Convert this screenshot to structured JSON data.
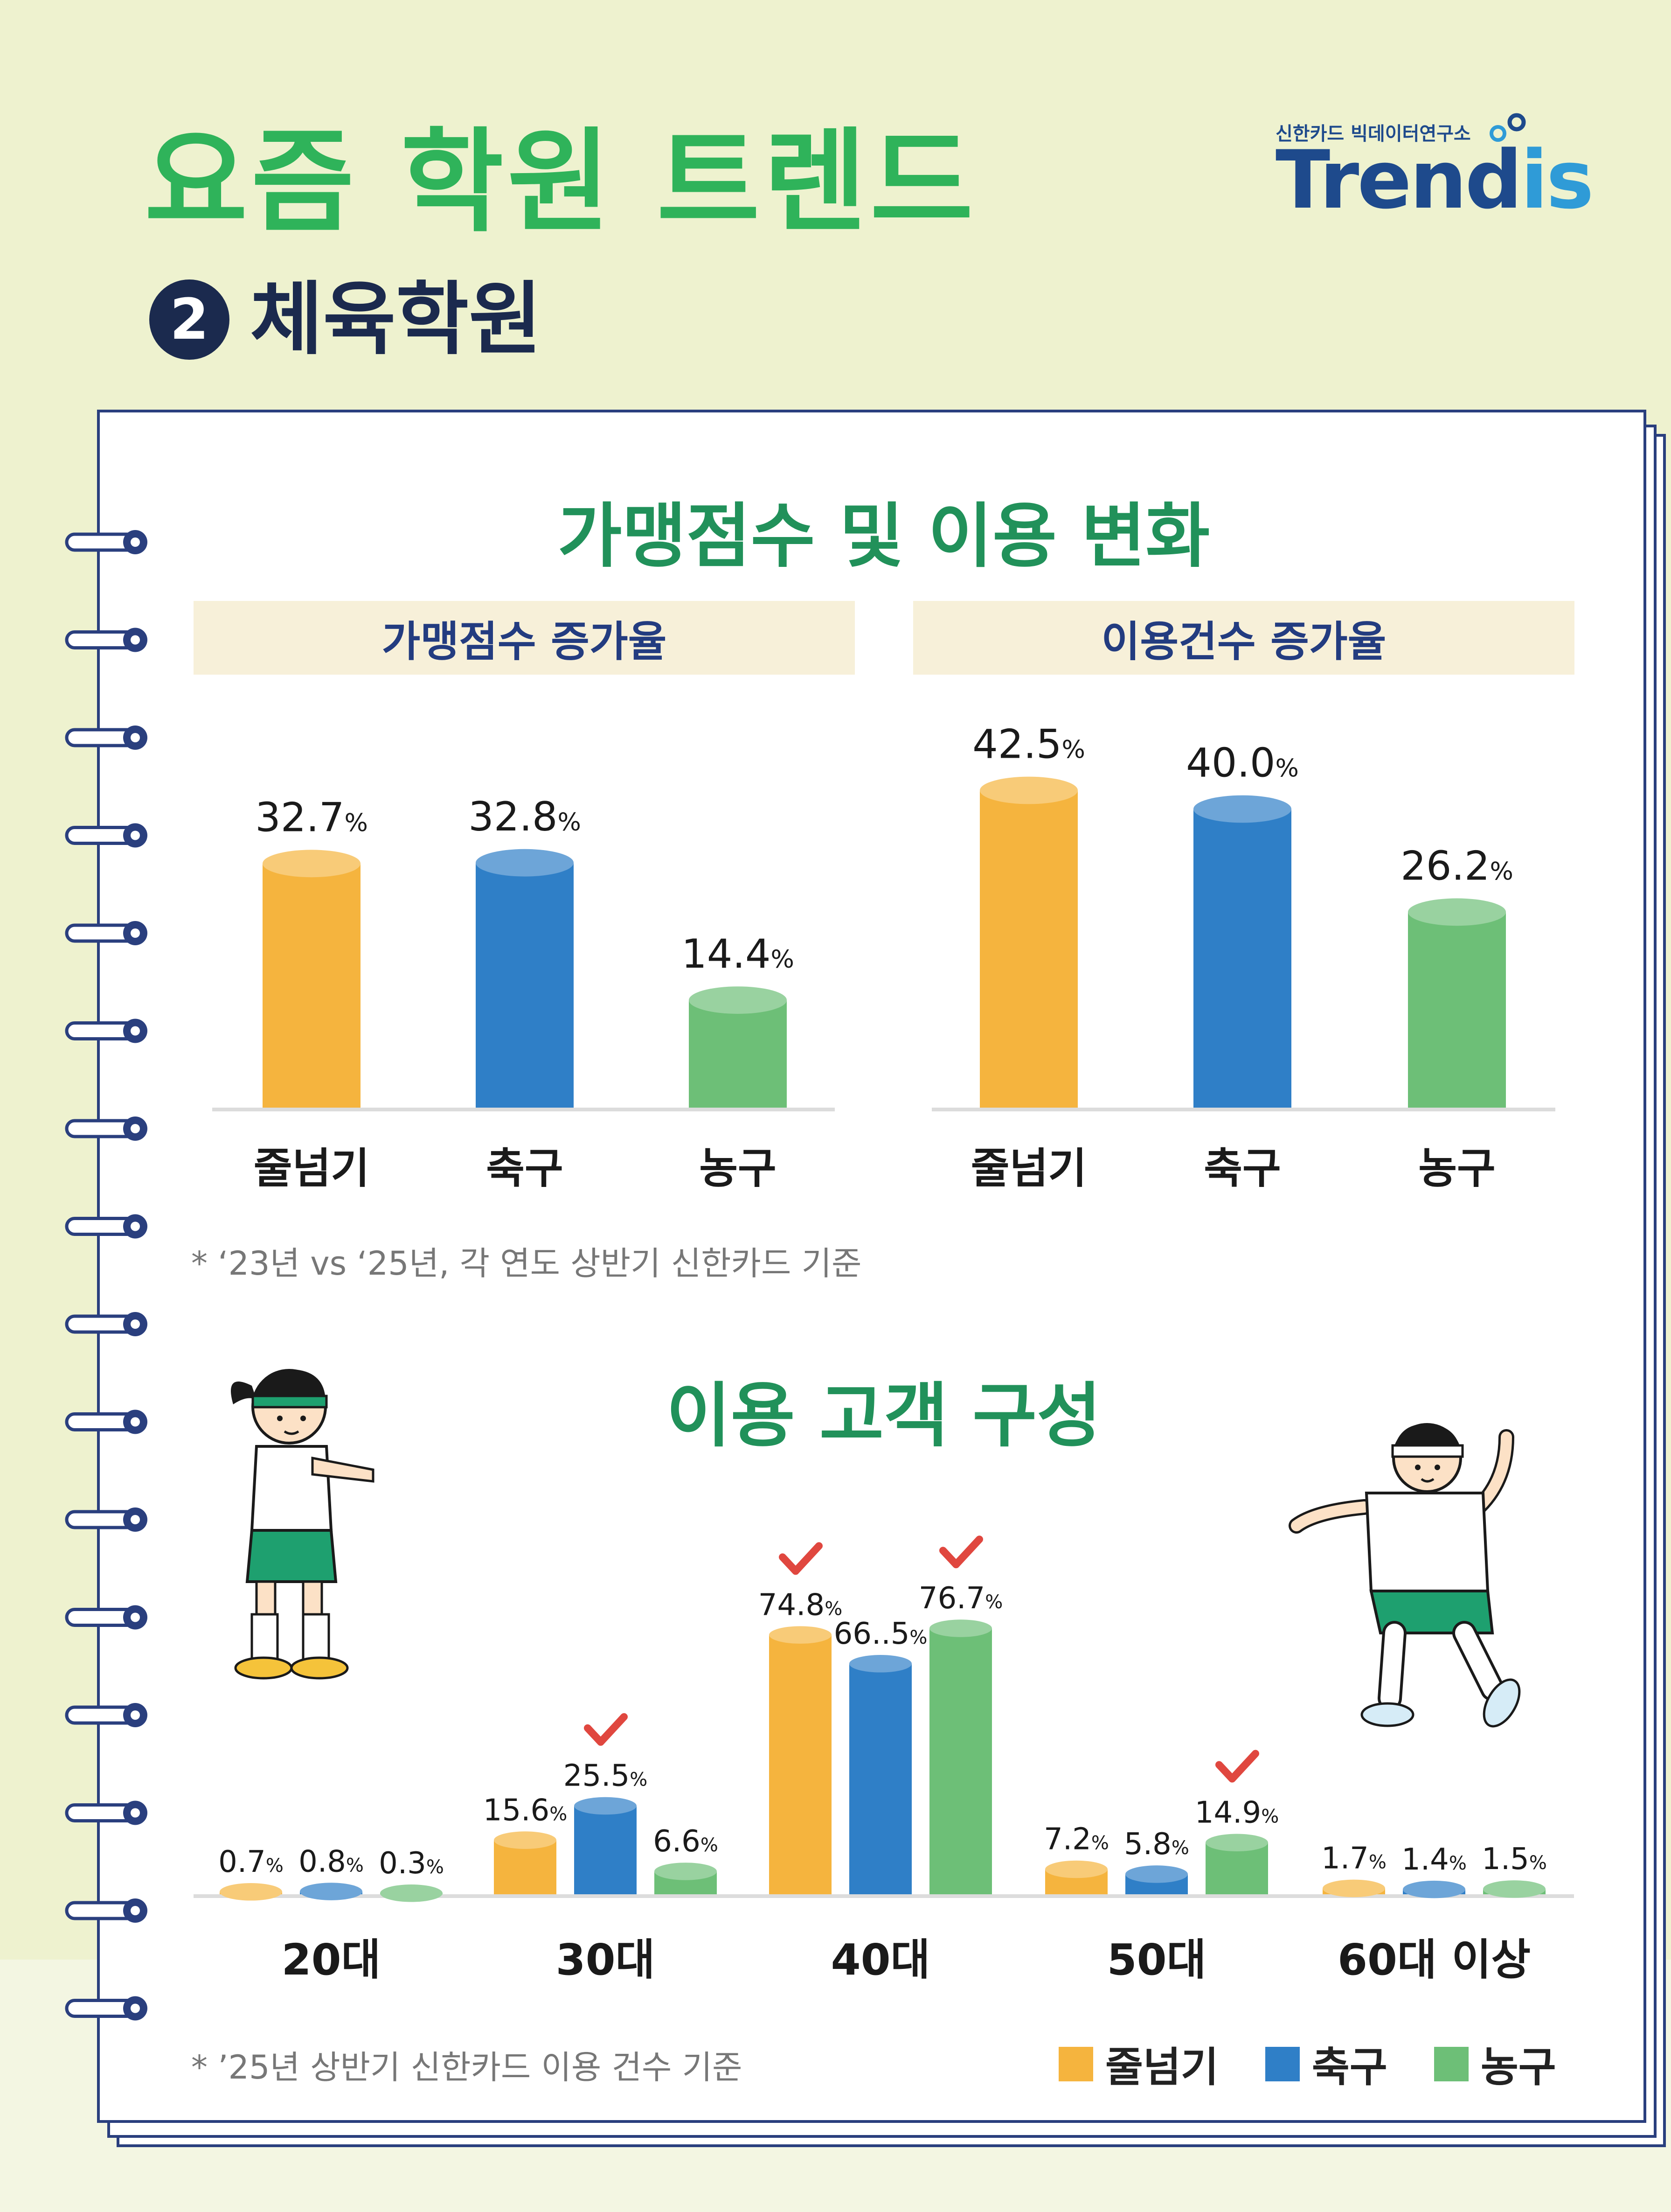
{
  "header": {
    "title": "요즘 학원 트렌드",
    "subtitle_number": "2",
    "subtitle": "체육학원"
  },
  "logo": {
    "org": "신한카드 빅데이터연구소",
    "brand_main": "Trend",
    "brand_accent": "is"
  },
  "section1": {
    "title": "가맹점수 및 이용 변화",
    "note": "* ‘23년 vs ‘25년, 각 연도 상반기 신한카드 기준"
  },
  "section2": {
    "title": "이용 고객 구성",
    "note": "* ’25년 상반기 신한카드 이용 건수 기준"
  },
  "legend": [
    {
      "label": "줄넘기",
      "color": "#f5b43e"
    },
    {
      "label": "축구",
      "color": "#2f7fc7"
    },
    {
      "label": "농구",
      "color": "#6dbf77"
    }
  ],
  "chart_data": [
    {
      "type": "bar",
      "title": "가맹점수 증가율",
      "categories": [
        "줄넘기",
        "축구",
        "농구"
      ],
      "values": [
        32.7,
        32.8,
        14.4
      ],
      "value_labels": [
        "32.7",
        "32.8",
        "14.4"
      ],
      "unit": "%",
      "colors": [
        "#f5b43e",
        "#2f7fc7",
        "#6dbf77"
      ]
    },
    {
      "type": "bar",
      "title": "이용건수 증가율",
      "categories": [
        "줄넘기",
        "축구",
        "농구"
      ],
      "values": [
        42.5,
        40.0,
        26.2
      ],
      "value_labels": [
        "42.5",
        "40.0",
        "26.2"
      ],
      "unit": "%",
      "colors": [
        "#f5b43e",
        "#2f7fc7",
        "#6dbf77"
      ]
    },
    {
      "type": "bar",
      "title": "이용 고객 구성",
      "categories": [
        "20대",
        "30대",
        "40대",
        "50대",
        "60대 이상"
      ],
      "unit": "%",
      "series": [
        {
          "name": "줄넘기",
          "color": "#f5b43e",
          "values": [
            0.7,
            15.6,
            74.8,
            7.2,
            1.7
          ],
          "value_labels": [
            "0.7",
            "15.6",
            "74.8",
            "7.2",
            "1.7"
          ]
        },
        {
          "name": "축구",
          "color": "#2f7fc7",
          "values": [
            0.8,
            25.5,
            66.5,
            5.8,
            1.4
          ],
          "value_labels": [
            "0.8",
            "25.5",
            "66..5",
            "5.8",
            "1.4"
          ]
        },
        {
          "name": "농구",
          "color": "#6dbf77",
          "values": [
            0.3,
            6.6,
            76.7,
            14.9,
            1.5
          ],
          "value_labels": [
            "0.3",
            "6.6",
            "76.7",
            "14.9",
            "1.5"
          ]
        }
      ],
      "checkmarks": [
        [
          1,
          1
        ],
        [
          2,
          0
        ],
        [
          2,
          2
        ],
        [
          3,
          2
        ]
      ]
    }
  ]
}
